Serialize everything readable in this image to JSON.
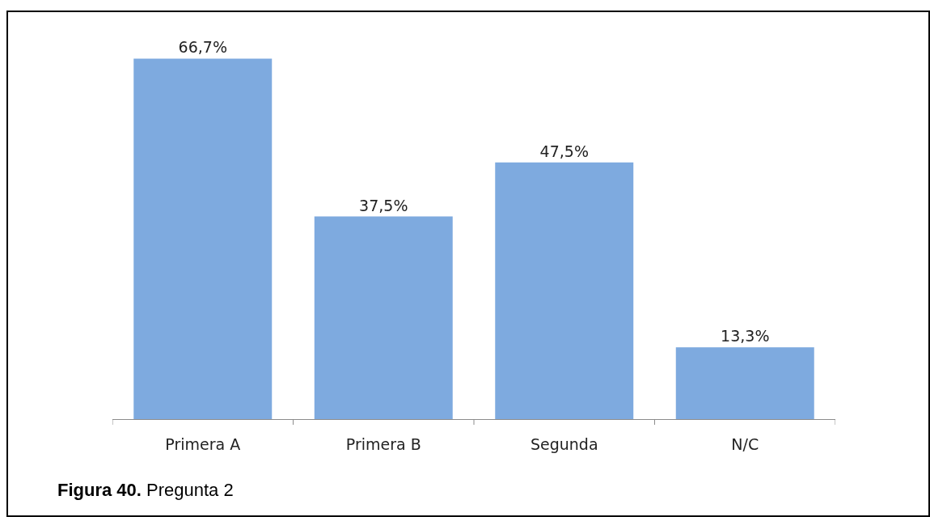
{
  "chart_data": {
    "type": "bar",
    "categories": [
      "Primera A",
      "Primera B",
      "Segunda",
      "N/C"
    ],
    "values": [
      66.7,
      37.5,
      47.5,
      13.3
    ],
    "color": "#7eaadf",
    "value_labels": [
      "66,7%",
      "37,5%",
      "47,5%",
      "13,3%"
    ],
    "annotations": [
      "Figura 40.",
      "Pregunta 2"
    ]
  }
}
